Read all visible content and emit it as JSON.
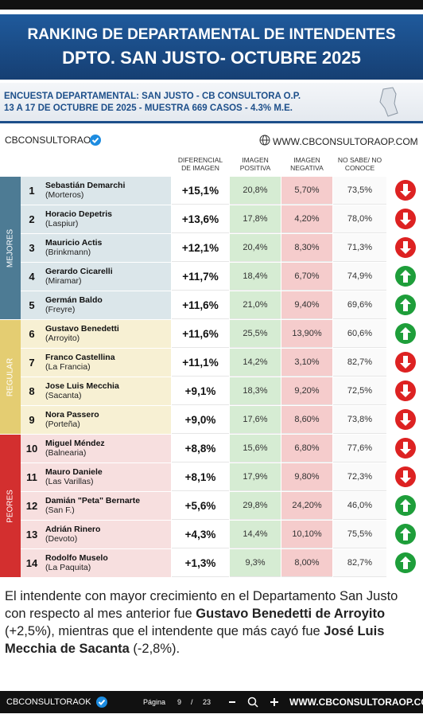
{
  "header": {
    "title_line1": "RANKING DE DEPARTAMENTAL DE INTENDENTES",
    "title_line2": "DPTO. SAN JUSTO- OCTUBRE 2025"
  },
  "survey": {
    "line1": "ENCUESTA DEPARTAMENTAL: SAN JUSTO - CB CONSULTORA O.P.",
    "line2": "13 A 17 DE OCTUBRE  DE 2025 - MUESTRA 669 CASOS - 4.3% M.E."
  },
  "brand": "CBCONSULTORAOK",
  "website": "WWW.CBCONSULTORAOP.COM",
  "table": {
    "columns": [
      "DIFERENCIAL DE IMAGEN",
      "IMAGEN POSITIVA",
      "IMAGEN NEGATIVA",
      "NO SABE/ NO CONOCE"
    ],
    "groups": [
      {
        "label": "MEJORES",
        "rows": 5,
        "color": "#4d7b94",
        "background": "#dbe6ea"
      },
      {
        "label": "REGULAR",
        "rows": 4,
        "color": "#e4cd72",
        "background": "#f7f0d3"
      },
      {
        "label": "PEORES",
        "rows": 5,
        "color": "#d32f2f",
        "background": "#f7dfdf"
      }
    ],
    "rows": [
      {
        "rank": "1",
        "name": "Sebastián Demarchi",
        "place": "(Morteros)",
        "diff": "+15,1%",
        "positive": "20,8%",
        "negative": "5,70%",
        "unknown": "73,5%",
        "trend": "down"
      },
      {
        "rank": "2",
        "name": "Horacio Depetris",
        "place": "(Laspiur)",
        "diff": "+13,6%",
        "positive": "17,8%",
        "negative": "4,20%",
        "unknown": "78,0%",
        "trend": "down"
      },
      {
        "rank": "3",
        "name": "Mauricio Actis",
        "place": "(Brinkmann)",
        "diff": "+12,1%",
        "positive": "20,4%",
        "negative": "8,30%",
        "unknown": "71,3%",
        "trend": "down"
      },
      {
        "rank": "4",
        "name": "Gerardo Cicarelli",
        "place": "(Miramar)",
        "diff": "+11,7%",
        "positive": "18,4%",
        "negative": "6,70%",
        "unknown": "74,9%",
        "trend": "up"
      },
      {
        "rank": "5",
        "name": "Germán Baldo",
        "place": "(Freyre)",
        "diff": "+11,6%",
        "positive": "21,0%",
        "negative": "9,40%",
        "unknown": "69,6%",
        "trend": "up"
      },
      {
        "rank": "6",
        "name": "Gustavo Benedetti",
        "place": "(Arroyito)",
        "diff": "+11,6%",
        "positive": "25,5%",
        "negative": "13,90%",
        "unknown": "60,6%",
        "trend": "up"
      },
      {
        "rank": "7",
        "name": "Franco Castellina",
        "place": "(La Francia)",
        "diff": "+11,1%",
        "positive": "14,2%",
        "negative": "3,10%",
        "unknown": "82,7%",
        "trend": "down"
      },
      {
        "rank": "8",
        "name": "Jose Luis Mecchia",
        "place": "(Sacanta)",
        "diff": "+9,1%",
        "positive": "18,3%",
        "negative": "9,20%",
        "unknown": "72,5%",
        "trend": "down"
      },
      {
        "rank": "9",
        "name": "Nora Passero",
        "place": "(Porteña)",
        "diff": "+9,0%",
        "positive": "17,6%",
        "negative": "8,60%",
        "unknown": "73,8%",
        "trend": "down"
      },
      {
        "rank": "10",
        "name": "Miguel Méndez",
        "place": "(Balnearia)",
        "diff": "+8,8%",
        "positive": "15,6%",
        "negative": "6,80%",
        "unknown": "77,6%",
        "trend": "down"
      },
      {
        "rank": "11",
        "name": "Mauro Daniele",
        "place": "(Las Varillas)",
        "diff": "+8,1%",
        "positive": "17,9%",
        "negative": "9,80%",
        "unknown": "72,3%",
        "trend": "down"
      },
      {
        "rank": "12",
        "name": "Damián \"Peta\" Bernarte",
        "place": "(San F.)",
        "diff": "+5,6%",
        "positive": "29,8%",
        "negative": "24,20%",
        "unknown": "46,0%",
        "trend": "up"
      },
      {
        "rank": "13",
        "name": "Adrián Rinero",
        "place": "(Devoto)",
        "diff": "+4,3%",
        "positive": "14,4%",
        "negative": "10,10%",
        "unknown": "75,5%",
        "trend": "up"
      },
      {
        "rank": "14",
        "name": "Rodolfo Muselo",
        "place": "(La Paquita)",
        "diff": "+1,3%",
        "positive": "9,3%",
        "negative": "8,00%",
        "unknown": "82,7%",
        "trend": "up"
      }
    ]
  },
  "paragraph": [
    {
      "text": "El intendente con mayor crecimiento en el Departamento San Justo con respecto al mes anterior fue ",
      "bold": false
    },
    {
      "text": "Gustavo Benedetti de Arroyito",
      "bold": true
    },
    {
      "text": " (+2,5%), mientras que el intendente que más cayó fue ",
      "bold": false
    },
    {
      "text": "José Luis Mecchia de Sacanta",
      "bold": true
    },
    {
      "text": " (-2,8%).",
      "bold": false
    }
  ],
  "footer": {
    "brand": "CBCONSULTORAOK",
    "page_label": "Página",
    "page": "9",
    "separator": "/",
    "total": "23",
    "website": "WWW.CBCONSULTORAOP.COM"
  }
}
